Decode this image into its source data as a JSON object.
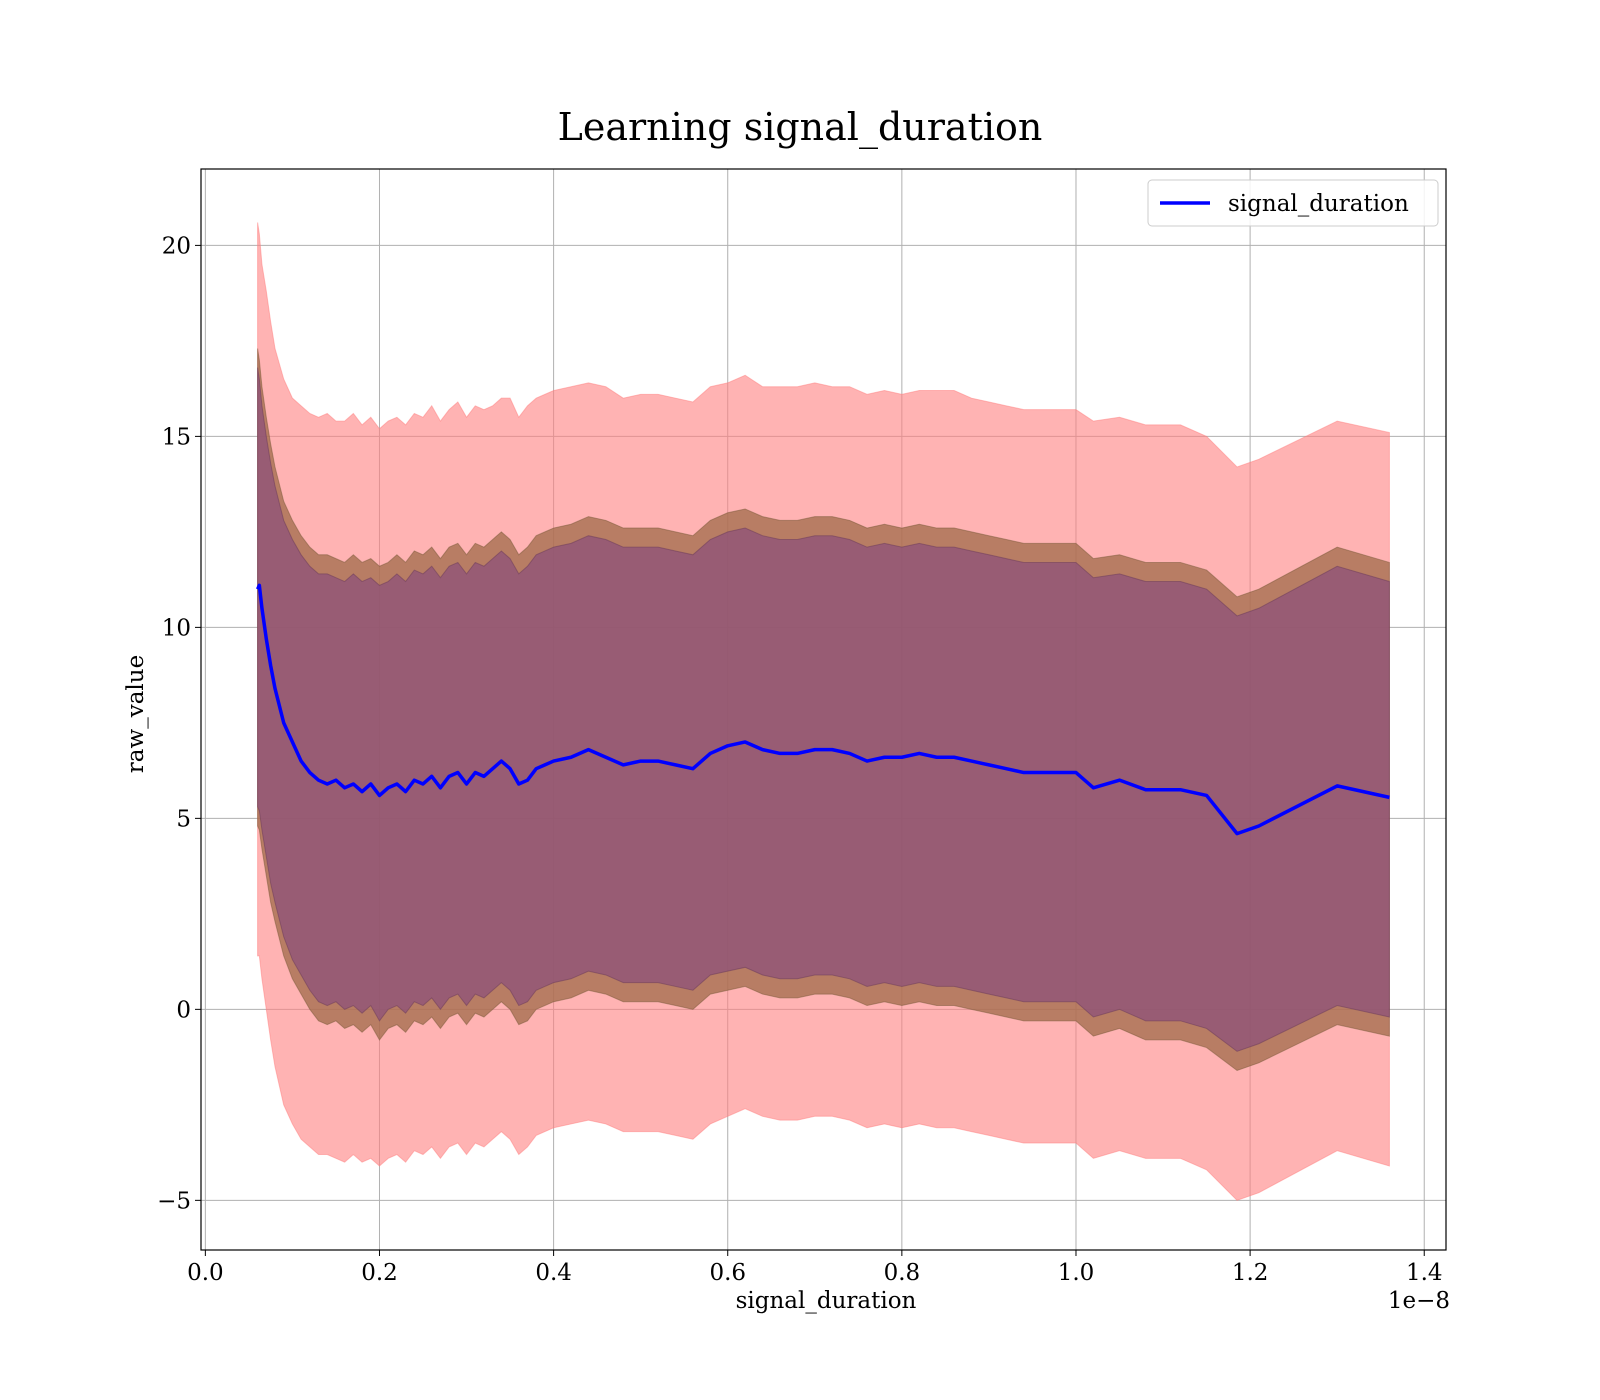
{
  "chart_data": {
    "type": "line",
    "title": "Learning signal_duration",
    "xlabel": "signal_duration",
    "ylabel": "raw_value",
    "x_offset_label": "1e−8",
    "xlim": [
      -0.005,
      1.425
    ],
    "ylim": [
      -6.3,
      22.0
    ],
    "x_ticks": [
      0.0,
      0.2,
      0.4,
      0.6,
      0.8,
      1.0,
      1.2,
      1.4
    ],
    "x_tick_labels": [
      "0.0",
      "0.2",
      "0.4",
      "0.6",
      "0.8",
      "1.0",
      "1.2",
      "1.4"
    ],
    "y_ticks": [
      -5,
      0,
      5,
      10,
      15,
      20
    ],
    "y_tick_labels": [
      "−5",
      "0",
      "5",
      "10",
      "15",
      "20"
    ],
    "grid": true,
    "legend_position": "top-right",
    "colors": {
      "line": "#0000ff",
      "outer_band": "#ff8080",
      "middle_band": "#a06b4a",
      "inner_band": "#8a4f7a"
    },
    "series": [
      {
        "name": "signal_duration",
        "x": [
          0.06,
          0.062,
          0.065,
          0.07,
          0.075,
          0.08,
          0.09,
          0.1,
          0.11,
          0.12,
          0.13,
          0.14,
          0.15,
          0.16,
          0.17,
          0.18,
          0.19,
          0.2,
          0.21,
          0.22,
          0.23,
          0.24,
          0.25,
          0.26,
          0.27,
          0.28,
          0.29,
          0.3,
          0.31,
          0.32,
          0.33,
          0.34,
          0.35,
          0.36,
          0.37,
          0.38,
          0.39,
          0.4,
          0.42,
          0.44,
          0.46,
          0.48,
          0.5,
          0.52,
          0.54,
          0.56,
          0.58,
          0.6,
          0.62,
          0.64,
          0.66,
          0.68,
          0.7,
          0.72,
          0.74,
          0.76,
          0.78,
          0.8,
          0.82,
          0.84,
          0.86,
          0.88,
          0.9,
          0.92,
          0.94,
          0.96,
          1.0,
          1.02,
          1.05,
          1.08,
          1.12,
          1.15,
          1.185,
          1.21,
          1.3,
          1.36
        ],
        "values": [
          11.0,
          11.1,
          10.5,
          9.7,
          9.0,
          8.4,
          7.5,
          7.0,
          6.5,
          6.2,
          6.0,
          5.9,
          6.0,
          5.8,
          5.9,
          5.7,
          5.9,
          5.6,
          5.8,
          5.9,
          5.7,
          6.0,
          5.9,
          6.1,
          5.8,
          6.1,
          6.2,
          5.9,
          6.2,
          6.1,
          6.3,
          6.5,
          6.3,
          5.9,
          6.0,
          6.3,
          6.4,
          6.5,
          6.6,
          6.8,
          6.6,
          6.4,
          6.5,
          6.5,
          6.4,
          6.3,
          6.7,
          6.9,
          7.0,
          6.8,
          6.7,
          6.7,
          6.8,
          6.8,
          6.7,
          6.5,
          6.6,
          6.6,
          6.7,
          6.6,
          6.6,
          6.5,
          6.4,
          6.3,
          6.2,
          6.2,
          6.2,
          5.8,
          6.0,
          5.75,
          5.75,
          5.6,
          4.6,
          4.8,
          5.85,
          5.55
        ],
        "bands": {
          "outer_upper": [
            20.6,
            20.3,
            19.5,
            18.8,
            18.0,
            17.3,
            16.5,
            16.0,
            15.8,
            15.6,
            15.5,
            15.6,
            15.4,
            15.4,
            15.6,
            15.3,
            15.5,
            15.2,
            15.4,
            15.5,
            15.3,
            15.6,
            15.5,
            15.8,
            15.4,
            15.7,
            15.9,
            15.5,
            15.8,
            15.7,
            15.8,
            16.0,
            16.0,
            15.5,
            15.8,
            16.0,
            16.1,
            16.2,
            16.3,
            16.4,
            16.3,
            16.0,
            16.1,
            16.1,
            16.0,
            15.9,
            16.3,
            16.4,
            16.6,
            16.3,
            16.3,
            16.3,
            16.4,
            16.3,
            16.3,
            16.1,
            16.2,
            16.1,
            16.2,
            16.2,
            16.2,
            16.0,
            15.9,
            15.8,
            15.7,
            15.7,
            15.7,
            15.4,
            15.5,
            15.3,
            15.3,
            15.0,
            14.2,
            14.4,
            15.4,
            15.1
          ],
          "middle_upper": [
            17.3,
            17.0,
            16.3,
            15.5,
            14.8,
            14.2,
            13.3,
            12.8,
            12.4,
            12.1,
            11.9,
            11.9,
            11.8,
            11.7,
            11.9,
            11.7,
            11.8,
            11.6,
            11.7,
            11.9,
            11.7,
            12.0,
            11.9,
            12.1,
            11.8,
            12.1,
            12.2,
            11.9,
            12.2,
            12.1,
            12.3,
            12.5,
            12.3,
            11.9,
            12.1,
            12.4,
            12.5,
            12.6,
            12.7,
            12.9,
            12.8,
            12.6,
            12.6,
            12.6,
            12.5,
            12.4,
            12.8,
            13.0,
            13.1,
            12.9,
            12.8,
            12.8,
            12.9,
            12.9,
            12.8,
            12.6,
            12.7,
            12.6,
            12.7,
            12.6,
            12.6,
            12.5,
            12.4,
            12.3,
            12.2,
            12.2,
            12.2,
            11.8,
            11.9,
            11.7,
            11.7,
            11.5,
            10.8,
            11.0,
            12.1,
            11.7
          ],
          "inner_upper": [
            16.8,
            16.5,
            15.8,
            15.0,
            14.3,
            13.7,
            12.8,
            12.3,
            11.9,
            11.6,
            11.4,
            11.4,
            11.3,
            11.2,
            11.4,
            11.2,
            11.3,
            11.1,
            11.2,
            11.4,
            11.2,
            11.5,
            11.4,
            11.6,
            11.3,
            11.6,
            11.7,
            11.4,
            11.7,
            11.6,
            11.8,
            12.0,
            11.8,
            11.4,
            11.6,
            11.9,
            12.0,
            12.1,
            12.2,
            12.4,
            12.3,
            12.1,
            12.1,
            12.1,
            12.0,
            11.9,
            12.3,
            12.5,
            12.6,
            12.4,
            12.3,
            12.3,
            12.4,
            12.4,
            12.3,
            12.1,
            12.2,
            12.1,
            12.2,
            12.1,
            12.1,
            12.0,
            11.9,
            11.8,
            11.7,
            11.7,
            11.7,
            11.3,
            11.4,
            11.2,
            11.2,
            11.0,
            10.3,
            10.5,
            11.6,
            11.2
          ],
          "inner_lower": [
            5.3,
            5.2,
            4.7,
            4.0,
            3.3,
            2.8,
            1.9,
            1.3,
            0.9,
            0.5,
            0.2,
            0.1,
            0.2,
            0.0,
            0.1,
            -0.1,
            0.1,
            -0.3,
            0.0,
            0.1,
            -0.1,
            0.2,
            0.1,
            0.3,
            0.0,
            0.3,
            0.4,
            0.1,
            0.4,
            0.3,
            0.5,
            0.7,
            0.5,
            0.1,
            0.2,
            0.5,
            0.6,
            0.7,
            0.8,
            1.0,
            0.9,
            0.7,
            0.7,
            0.7,
            0.6,
            0.5,
            0.9,
            1.0,
            1.1,
            0.9,
            0.8,
            0.8,
            0.9,
            0.9,
            0.8,
            0.6,
            0.7,
            0.6,
            0.7,
            0.6,
            0.6,
            0.5,
            0.4,
            0.3,
            0.2,
            0.2,
            0.2,
            -0.2,
            0.0,
            -0.3,
            -0.3,
            -0.5,
            -1.1,
            -0.9,
            0.1,
            -0.2
          ],
          "middle_lower": [
            4.8,
            4.7,
            4.2,
            3.5,
            2.8,
            2.3,
            1.4,
            0.8,
            0.4,
            0.0,
            -0.3,
            -0.4,
            -0.3,
            -0.5,
            -0.4,
            -0.6,
            -0.4,
            -0.8,
            -0.5,
            -0.4,
            -0.6,
            -0.3,
            -0.4,
            -0.2,
            -0.5,
            -0.2,
            -0.1,
            -0.4,
            -0.1,
            -0.2,
            0.0,
            0.2,
            0.0,
            -0.4,
            -0.3,
            0.0,
            0.1,
            0.2,
            0.3,
            0.5,
            0.4,
            0.2,
            0.2,
            0.2,
            0.1,
            0.0,
            0.4,
            0.5,
            0.6,
            0.4,
            0.3,
            0.3,
            0.4,
            0.4,
            0.3,
            0.1,
            0.2,
            0.1,
            0.2,
            0.1,
            0.1,
            0.0,
            -0.1,
            -0.2,
            -0.3,
            -0.3,
            -0.3,
            -0.7,
            -0.5,
            -0.8,
            -0.8,
            -1.0,
            -1.6,
            -1.4,
            -0.4,
            -0.7
          ],
          "outer_lower": [
            1.4,
            1.4,
            0.8,
            0.0,
            -0.8,
            -1.5,
            -2.5,
            -3.0,
            -3.4,
            -3.6,
            -3.8,
            -3.8,
            -3.9,
            -4.0,
            -3.8,
            -4.0,
            -3.9,
            -4.1,
            -3.9,
            -3.8,
            -4.0,
            -3.7,
            -3.8,
            -3.6,
            -3.9,
            -3.6,
            -3.5,
            -3.8,
            -3.5,
            -3.6,
            -3.4,
            -3.2,
            -3.4,
            -3.8,
            -3.6,
            -3.3,
            -3.2,
            -3.1,
            -3.0,
            -2.9,
            -3.0,
            -3.2,
            -3.2,
            -3.2,
            -3.3,
            -3.4,
            -3.0,
            -2.8,
            -2.6,
            -2.8,
            -2.9,
            -2.9,
            -2.8,
            -2.8,
            -2.9,
            -3.1,
            -3.0,
            -3.1,
            -3.0,
            -3.1,
            -3.1,
            -3.2,
            -3.3,
            -3.4,
            -3.5,
            -3.5,
            -3.5,
            -3.9,
            -3.7,
            -3.9,
            -3.9,
            -4.2,
            -5.0,
            -4.8,
            -3.7,
            -4.1
          ]
        }
      }
    ]
  }
}
